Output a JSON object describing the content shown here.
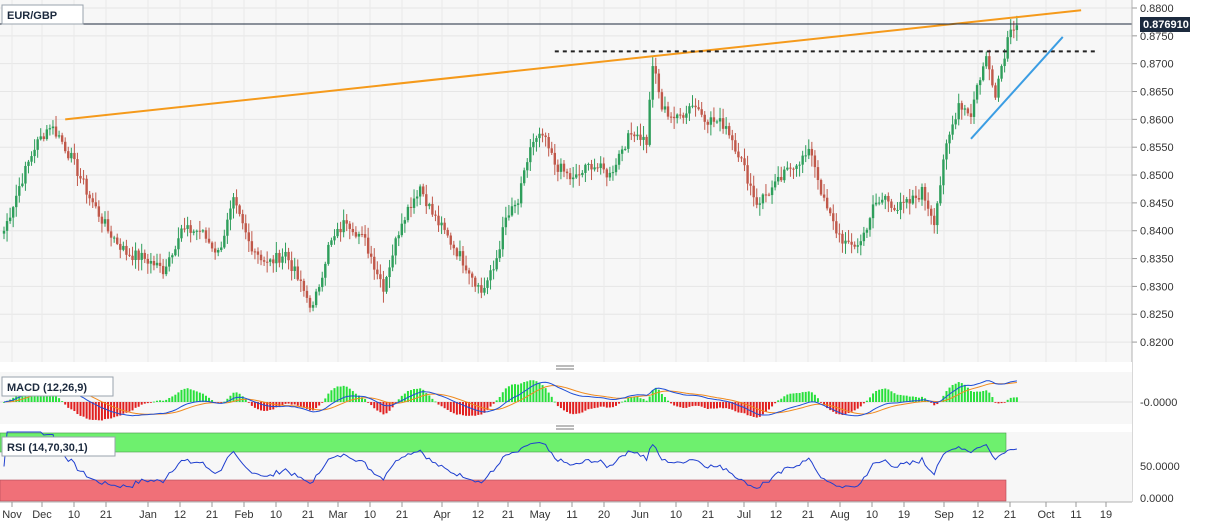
{
  "symbol": "EUR/GBP",
  "current_price_label": "0.876910",
  "panels": {
    "macd_label": "MACD (12,26,9)",
    "macd_tick": "-0.0000",
    "rsi_label": "RSI (14,70,30,1)",
    "rsi_ticks": [
      "50.0000",
      "0.0000"
    ]
  },
  "colors": {
    "up": "#2e9e5b",
    "down": "#c0584a",
    "trend_orange": "#f59a1b",
    "trend_blue": "#3b9de3",
    "macd_line": "#1f4fd6",
    "signal_line": "#f08a1e",
    "hist_pos": "#27e03a",
    "hist_neg": "#e11f1f",
    "rsi_line": "#1f3fcf",
    "rsi_overbought": "#6ef06e",
    "rsi_oversold": "#f07078",
    "price_label_bg": "#1c2a3e"
  },
  "chart_data": {
    "type": "candlestick",
    "title": "EUR/GBP",
    "ylim": [
      0.8175,
      0.88
    ],
    "y_ticks": [
      "0.8800",
      "0.8750",
      "0.8700",
      "0.8650",
      "0.8600",
      "0.8550",
      "0.8500",
      "0.8450",
      "0.8400",
      "0.8350",
      "0.8300",
      "0.8250",
      "0.8200"
    ],
    "x_ticks": [
      "Nov",
      "Dec",
      "10",
      "21",
      "Jan",
      "12",
      "21",
      "Feb",
      "10",
      "21",
      "Mar",
      "10",
      "21",
      "Apr",
      "12",
      "21",
      "May",
      "11",
      "20",
      "Jun",
      "10",
      "21",
      "Jul",
      "12",
      "21",
      "Aug",
      "10",
      "19",
      "Sep",
      "12",
      "21",
      "Oct",
      "11",
      "19"
    ],
    "current_price": 0.87691,
    "close_anchors": [
      [
        0,
        0.84
      ],
      [
        5,
        0.848
      ],
      [
        10,
        0.855
      ],
      [
        15,
        0.859
      ],
      [
        18,
        0.857
      ],
      [
        22,
        0.853
      ],
      [
        28,
        0.846
      ],
      [
        34,
        0.84
      ],
      [
        40,
        0.836
      ],
      [
        46,
        0.835
      ],
      [
        52,
        0.833
      ],
      [
        58,
        0.84
      ],
      [
        64,
        0.84
      ],
      [
        70,
        0.836
      ],
      [
        75,
        0.845
      ],
      [
        80,
        0.838
      ],
      [
        86,
        0.834
      ],
      [
        92,
        0.836
      ],
      [
        98,
        0.829
      ],
      [
        101,
        0.826
      ],
      [
        106,
        0.837
      ],
      [
        112,
        0.842
      ],
      [
        118,
        0.838
      ],
      [
        124,
        0.83
      ],
      [
        130,
        0.842
      ],
      [
        136,
        0.848
      ],
      [
        140,
        0.843
      ],
      [
        146,
        0.838
      ],
      [
        152,
        0.833
      ],
      [
        156,
        0.829
      ],
      [
        160,
        0.833
      ],
      [
        164,
        0.842
      ],
      [
        168,
        0.845
      ],
      [
        172,
        0.855
      ],
      [
        176,
        0.857
      ],
      [
        180,
        0.852
      ],
      [
        186,
        0.849
      ],
      [
        192,
        0.852
      ],
      [
        198,
        0.85
      ],
      [
        202,
        0.855
      ],
      [
        206,
        0.858
      ],
      [
        210,
        0.856
      ],
      [
        212,
        0.87
      ],
      [
        215,
        0.862
      ],
      [
        220,
        0.86
      ],
      [
        225,
        0.863
      ],
      [
        230,
        0.86
      ],
      [
        236,
        0.859
      ],
      [
        240,
        0.854
      ],
      [
        246,
        0.845
      ],
      [
        252,
        0.848
      ],
      [
        258,
        0.852
      ],
      [
        264,
        0.854
      ],
      [
        268,
        0.845
      ],
      [
        272,
        0.84
      ],
      [
        276,
        0.837
      ],
      [
        280,
        0.838
      ],
      [
        284,
        0.844
      ],
      [
        288,
        0.846
      ],
      [
        292,
        0.844
      ],
      [
        296,
        0.845
      ],
      [
        300,
        0.847
      ],
      [
        304,
        0.842
      ],
      [
        308,
        0.855
      ],
      [
        312,
        0.863
      ],
      [
        316,
        0.861
      ],
      [
        318,
        0.866
      ],
      [
        321,
        0.871
      ],
      [
        324,
        0.865
      ],
      [
        327,
        0.872
      ],
      [
        329,
        0.877
      ],
      [
        331,
        0.8769
      ]
    ],
    "trendlines": [
      {
        "name": "orange-resistance",
        "from": [
          20,
          0.86
        ],
        "to": [
          352,
          0.8796
        ]
      },
      {
        "name": "horizontal-support",
        "style": "dashed",
        "from": [
          180,
          0.8722
        ],
        "to": [
          357,
          0.8722
        ]
      },
      {
        "name": "blue-support",
        "from": [
          316,
          0.8565
        ],
        "to": [
          346,
          0.8748
        ]
      }
    ],
    "panels": [
      {
        "type": "macd",
        "label": "MACD (12,26,9)",
        "tick": "-0.0000"
      },
      {
        "type": "rsi",
        "label": "RSI (14,70,30,1)",
        "ticks": [
          "50.0000",
          "0.0000"
        ]
      }
    ]
  }
}
